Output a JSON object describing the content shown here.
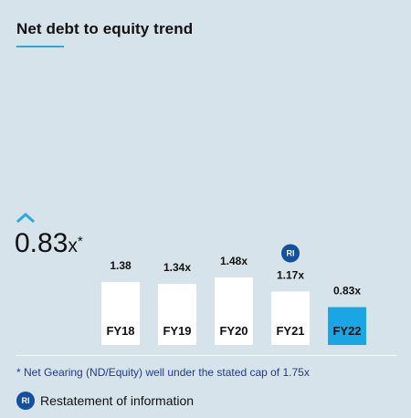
{
  "title": "Net debt to equity trend",
  "headline": {
    "value": "0.83",
    "unit": "x",
    "marker": "*"
  },
  "chart_data": {
    "type": "bar",
    "categories": [
      "FY18",
      "FY19",
      "FY20",
      "FY21",
      "FY22"
    ],
    "values": [
      1.38,
      1.34,
      1.48,
      1.17,
      0.83
    ],
    "value_labels": [
      "1.38",
      "1.34x",
      "1.48x",
      "1.17x",
      "0.83x"
    ],
    "restated": [
      false,
      false,
      false,
      true,
      false
    ],
    "highlight_index": 4,
    "title": "Net debt to equity trend",
    "xlabel": "",
    "ylabel": "",
    "ylim": [
      0,
      1.6
    ],
    "grid": false,
    "legend": "none"
  },
  "badge": {
    "label": "RI"
  },
  "footnote": "* Net Gearing (ND/Equity) well under the stated cap of 1.75x",
  "legend": {
    "label": "Restatement of information"
  },
  "colors": {
    "background": "#d7e3ea",
    "bar": "#ffffff",
    "highlight_bar": "#1aa6e4",
    "accent": "#2aa8e0",
    "badge": "#14519d",
    "footnote_text": "#1f3a8f"
  }
}
